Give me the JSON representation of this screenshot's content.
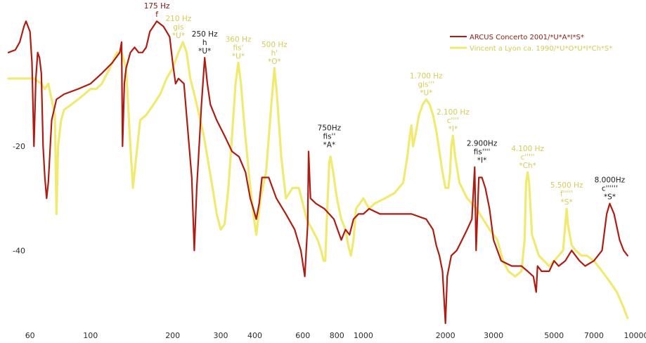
{
  "chart_data": {
    "type": "line",
    "x_scale": "log",
    "xlim": [
      50,
      10000
    ],
    "ylim": [
      -54,
      7
    ],
    "grid": false,
    "legend_position": "top-right",
    "x_ticks": [
      {
        "value": 60,
        "label": "60"
      },
      {
        "value": 100,
        "label": "100"
      },
      {
        "value": 200,
        "label": "200"
      },
      {
        "value": 300,
        "label": "300"
      },
      {
        "value": 400,
        "label": "400"
      },
      {
        "value": 600,
        "label": "600"
      },
      {
        "value": 800,
        "label": "800"
      },
      {
        "value": 1000,
        "label": "1000"
      },
      {
        "value": 2000,
        "label": "2000"
      },
      {
        "value": 3000,
        "label": "3000"
      },
      {
        "value": 5000,
        "label": "5000"
      },
      {
        "value": 7000,
        "label": "7000"
      },
      {
        "value": 10000,
        "label": "10000"
      }
    ],
    "y_ticks": [
      {
        "value": -20,
        "label": "-20"
      },
      {
        "value": -40,
        "label": "-40"
      }
    ],
    "series": [
      {
        "name": "ARCUS Concerto 2001/*U*A*I*S*",
        "color": "#b01c12",
        "points": [
          [
            50,
            -2
          ],
          [
            53,
            -1.5
          ],
          [
            55,
            0
          ],
          [
            57,
            3
          ],
          [
            58,
            4
          ],
          [
            60,
            2
          ],
          [
            61,
            -4
          ],
          [
            62,
            -20
          ],
          [
            63,
            -7
          ],
          [
            64,
            -2
          ],
          [
            65,
            -3
          ],
          [
            66,
            -6
          ],
          [
            67,
            -20
          ],
          [
            68,
            -26
          ],
          [
            69,
            -30
          ],
          [
            70,
            -27
          ],
          [
            72,
            -15
          ],
          [
            75,
            -11
          ],
          [
            80,
            -10
          ],
          [
            90,
            -9
          ],
          [
            100,
            -8
          ],
          [
            110,
            -6
          ],
          [
            120,
            -4
          ],
          [
            128,
            -2
          ],
          [
            130,
            0
          ],
          [
            131,
            -20
          ],
          [
            133,
            -8
          ],
          [
            135,
            -5
          ],
          [
            140,
            -2
          ],
          [
            145,
            -1
          ],
          [
            150,
            -2
          ],
          [
            155,
            -2
          ],
          [
            160,
            -1
          ],
          [
            165,
            2
          ],
          [
            175,
            4
          ],
          [
            185,
            3
          ],
          [
            195,
            1
          ],
          [
            200,
            -4
          ],
          [
            205,
            -8
          ],
          [
            210,
            -7
          ],
          [
            220,
            -8
          ],
          [
            235,
            -26
          ],
          [
            240,
            -40
          ],
          [
            245,
            -28
          ],
          [
            250,
            -20
          ],
          [
            255,
            -12
          ],
          [
            262,
            -3
          ],
          [
            268,
            -8
          ],
          [
            275,
            -12
          ],
          [
            290,
            -15
          ],
          [
            310,
            -18
          ],
          [
            330,
            -21
          ],
          [
            350,
            -22
          ],
          [
            370,
            -25
          ],
          [
            385,
            -30
          ],
          [
            395,
            -32
          ],
          [
            405,
            -34
          ],
          [
            415,
            -31
          ],
          [
            425,
            -26
          ],
          [
            450,
            -26
          ],
          [
            480,
            -30
          ],
          [
            520,
            -33
          ],
          [
            560,
            -36
          ],
          [
            590,
            -40
          ],
          [
            610,
            -45
          ],
          [
            625,
            -35
          ],
          [
            630,
            -21
          ],
          [
            640,
            -30
          ],
          [
            670,
            -31
          ],
          [
            720,
            -32
          ],
          [
            780,
            -34
          ],
          [
            830,
            -38
          ],
          [
            860,
            -36
          ],
          [
            890,
            -37
          ],
          [
            920,
            -34
          ],
          [
            960,
            -33
          ],
          [
            1000,
            -33
          ],
          [
            1050,
            -32
          ],
          [
            1150,
            -33
          ],
          [
            1300,
            -33
          ],
          [
            1500,
            -33
          ],
          [
            1700,
            -34
          ],
          [
            1800,
            -36
          ],
          [
            1850,
            -39
          ],
          [
            1900,
            -41
          ],
          [
            1950,
            -44
          ],
          [
            2000,
            -54
          ],
          [
            2030,
            -45
          ],
          [
            2100,
            -41
          ],
          [
            2200,
            -40
          ],
          [
            2300,
            -38
          ],
          [
            2400,
            -36
          ],
          [
            2500,
            -34
          ],
          [
            2560,
            -24
          ],
          [
            2590,
            -40
          ],
          [
            2650,
            -26
          ],
          [
            2720,
            -26
          ],
          [
            2800,
            -28
          ],
          [
            2900,
            -32
          ],
          [
            3000,
            -38
          ],
          [
            3200,
            -42
          ],
          [
            3500,
            -43
          ],
          [
            3800,
            -43
          ],
          [
            4000,
            -44
          ],
          [
            4200,
            -45
          ],
          [
            4300,
            -48
          ],
          [
            4350,
            -43
          ],
          [
            4500,
            -44
          ],
          [
            4800,
            -44
          ],
          [
            5000,
            -42
          ],
          [
            5200,
            -43
          ],
          [
            5500,
            -42
          ],
          [
            5800,
            -40
          ],
          [
            6200,
            -42
          ],
          [
            6500,
            -43
          ],
          [
            7000,
            -42
          ],
          [
            7500,
            -40
          ],
          [
            7800,
            -33
          ],
          [
            8000,
            -31
          ],
          [
            8300,
            -33
          ],
          [
            8700,
            -38
          ],
          [
            9000,
            -40
          ],
          [
            9300,
            -41
          ]
        ]
      },
      {
        "name": "Vincent a Lyon ca. 1990/*U*O*U*I*Ch*S*",
        "color": "#f0ea70",
        "points": [
          [
            50,
            -7
          ],
          [
            55,
            -7
          ],
          [
            58,
            -7
          ],
          [
            60,
            -7
          ],
          [
            62,
            -7
          ],
          [
            64,
            -7.5
          ],
          [
            66,
            -8
          ],
          [
            68,
            -9
          ],
          [
            70,
            -8
          ],
          [
            72,
            -11
          ],
          [
            74,
            -14
          ],
          [
            75,
            -33
          ],
          [
            76,
            -20
          ],
          [
            78,
            -15
          ],
          [
            80,
            -13
          ],
          [
            85,
            -12
          ],
          [
            90,
            -11
          ],
          [
            95,
            -10
          ],
          [
            100,
            -9
          ],
          [
            105,
            -9
          ],
          [
            110,
            -8
          ],
          [
            115,
            -6
          ],
          [
            120,
            -4
          ],
          [
            125,
            -2
          ],
          [
            130,
            -2
          ],
          [
            135,
            -5
          ],
          [
            140,
            -20
          ],
          [
            143,
            -28
          ],
          [
            147,
            -22
          ],
          [
            152,
            -15
          ],
          [
            160,
            -14
          ],
          [
            170,
            -12
          ],
          [
            180,
            -10
          ],
          [
            190,
            -7
          ],
          [
            200,
            -5
          ],
          [
            210,
            -2
          ],
          [
            218,
            0
          ],
          [
            225,
            -2
          ],
          [
            232,
            -7
          ],
          [
            240,
            -10
          ],
          [
            250,
            -14
          ],
          [
            260,
            -18
          ],
          [
            270,
            -23
          ],
          [
            280,
            -28
          ],
          [
            290,
            -33
          ],
          [
            300,
            -36
          ],
          [
            310,
            -35
          ],
          [
            320,
            -28
          ],
          [
            330,
            -18
          ],
          [
            340,
            -8
          ],
          [
            348,
            -4
          ],
          [
            356,
            -8
          ],
          [
            365,
            -15
          ],
          [
            380,
            -25
          ],
          [
            395,
            -33
          ],
          [
            405,
            -37
          ],
          [
            420,
            -30
          ],
          [
            440,
            -25
          ],
          [
            460,
            -12
          ],
          [
            472,
            -5
          ],
          [
            482,
            -10
          ],
          [
            500,
            -22
          ],
          [
            520,
            -30
          ],
          [
            550,
            -28
          ],
          [
            580,
            -28
          ],
          [
            600,
            -31
          ],
          [
            620,
            -34
          ],
          [
            650,
            -36
          ],
          [
            680,
            -38
          ],
          [
            700,
            -40
          ],
          [
            715,
            -42
          ],
          [
            725,
            -42
          ],
          [
            740,
            -30
          ],
          [
            750,
            -23
          ],
          [
            758,
            -22
          ],
          [
            775,
            -25
          ],
          [
            800,
            -30
          ],
          [
            830,
            -34
          ],
          [
            860,
            -36
          ],
          [
            880,
            -39
          ],
          [
            900,
            -41
          ],
          [
            920,
            -38
          ],
          [
            940,
            -32
          ],
          [
            970,
            -31
          ],
          [
            1000,
            -30
          ],
          [
            1050,
            -32
          ],
          [
            1100,
            -31
          ],
          [
            1200,
            -30
          ],
          [
            1300,
            -29
          ],
          [
            1400,
            -27
          ],
          [
            1450,
            -22
          ],
          [
            1480,
            -18
          ],
          [
            1500,
            -16
          ],
          [
            1520,
            -20
          ],
          [
            1550,
            -18
          ],
          [
            1600,
            -14
          ],
          [
            1650,
            -12
          ],
          [
            1700,
            -11
          ],
          [
            1750,
            -12
          ],
          [
            1800,
            -14
          ],
          [
            1850,
            -17
          ],
          [
            1900,
            -21
          ],
          [
            1950,
            -25
          ],
          [
            2000,
            -28
          ],
          [
            2050,
            -28
          ],
          [
            2080,
            -25
          ],
          [
            2100,
            -20
          ],
          [
            2130,
            -18
          ],
          [
            2170,
            -22
          ],
          [
            2250,
            -27
          ],
          [
            2400,
            -30
          ],
          [
            2600,
            -32
          ],
          [
            2900,
            -36
          ],
          [
            3100,
            -38
          ],
          [
            3250,
            -42
          ],
          [
            3400,
            -44
          ],
          [
            3600,
            -45
          ],
          [
            3800,
            -44
          ],
          [
            3900,
            -38
          ],
          [
            3950,
            -27
          ],
          [
            4000,
            -25
          ],
          [
            4050,
            -27
          ],
          [
            4150,
            -37
          ],
          [
            4400,
            -41
          ],
          [
            4800,
            -43
          ],
          [
            5000,
            -42
          ],
          [
            5200,
            -41
          ],
          [
            5400,
            -40
          ],
          [
            5500,
            -35
          ],
          [
            5560,
            -32
          ],
          [
            5620,
            -35
          ],
          [
            5800,
            -39
          ],
          [
            6000,
            -40
          ],
          [
            6300,
            -41
          ],
          [
            6600,
            -41
          ],
          [
            7000,
            -42
          ],
          [
            7500,
            -44
          ],
          [
            8000,
            -46
          ],
          [
            8500,
            -48
          ],
          [
            9000,
            -51
          ],
          [
            9300,
            -53
          ]
        ]
      }
    ],
    "annotations": [
      {
        "x": 175,
        "y": 4,
        "color": "#7a1812",
        "lines": [
          "175 Hz",
          "f"
        ]
      },
      {
        "x": 210,
        "y": 0,
        "color": "#d4cc55",
        "lines": [
          "210 Hz",
          "gis",
          "*U*"
        ]
      },
      {
        "x": 262,
        "y": -3,
        "color": "#1a1a1a",
        "lines": [
          "250 Hz",
          "h",
          "*U*"
        ]
      },
      {
        "x": 348,
        "y": -4,
        "color": "#d4cc55",
        "lines": [
          "360 Hz",
          "fis'",
          "*U*"
        ]
      },
      {
        "x": 472,
        "y": -5,
        "color": "#d4cc55",
        "lines": [
          "500 Hz",
          "h'",
          "*O*"
        ]
      },
      {
        "x": 750,
        "y": -21,
        "color": "#1a1a1a",
        "lines": [
          "750Hz",
          "fis''",
          "*A*"
        ]
      },
      {
        "x": 1700,
        "y": -11,
        "color": "#d4cc55",
        "lines": [
          "1.700 Hz",
          "gis'''",
          "*U*"
        ]
      },
      {
        "x": 2130,
        "y": -18,
        "color": "#d4cc55",
        "lines": [
          "2.100 Hz",
          "c''''",
          "*I*"
        ]
      },
      {
        "x": 2720,
        "y": -24,
        "color": "#1a1a1a",
        "lines": [
          "2.900Hz",
          "fis''''",
          "*I*"
        ]
      },
      {
        "x": 4000,
        "y": -25,
        "color": "#d4cc55",
        "lines": [
          "4.100 Hz",
          "c'''''",
          "*Ch*"
        ]
      },
      {
        "x": 5560,
        "y": -32,
        "color": "#d4cc55",
        "lines": [
          "5.500 Hz",
          "f'''''",
          "*S*"
        ]
      },
      {
        "x": 8000,
        "y": -31,
        "color": "#1a1a1a",
        "lines": [
          "8.000Hz",
          "c''''''",
          "*S*"
        ]
      }
    ]
  }
}
